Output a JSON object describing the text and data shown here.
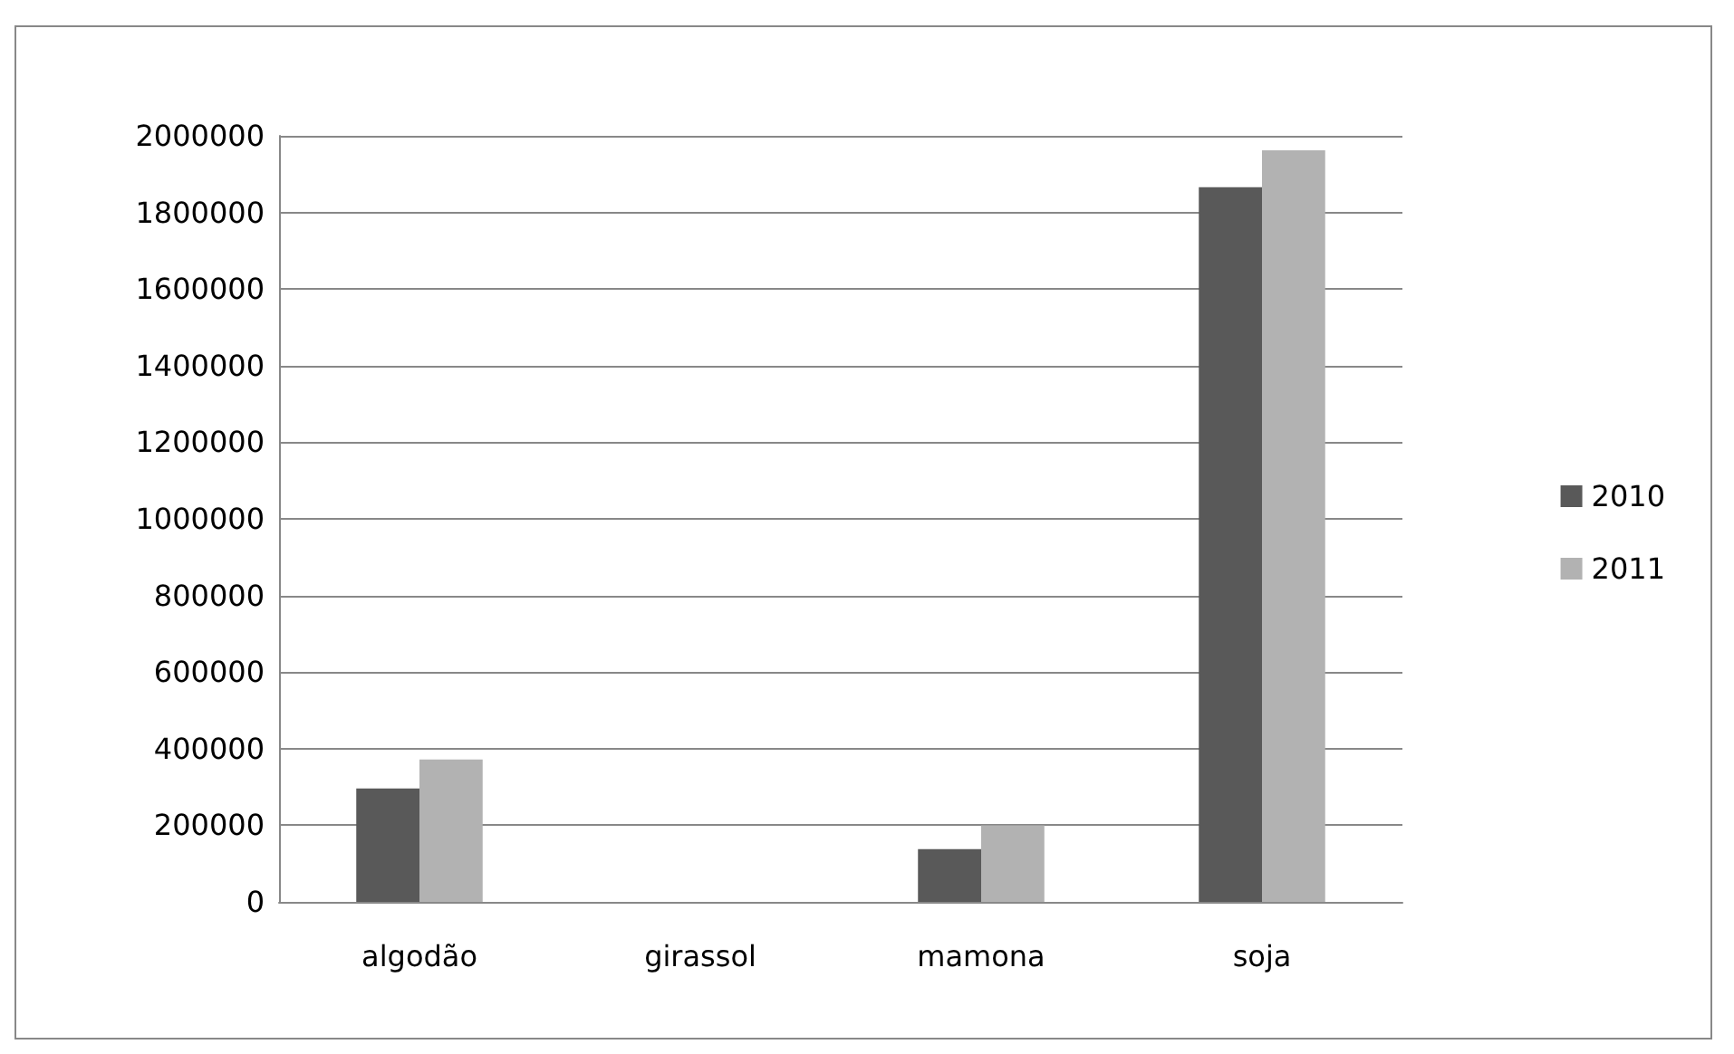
{
  "chart_data": {
    "type": "bar",
    "categories": [
      "algodão",
      "girassol",
      "mamona",
      "soja"
    ],
    "series": [
      {
        "name": "2010",
        "color": "#595959",
        "values": [
          296000,
          null,
          138000,
          1866000
        ]
      },
      {
        "name": "2011",
        "color": "#b2b2b2",
        "values": [
          372000,
          null,
          200000,
          1962000
        ]
      }
    ],
    "ylim": [
      0,
      2000000
    ],
    "yticks": [
      0,
      200000,
      400000,
      600000,
      800000,
      1000000,
      1200000,
      1400000,
      1600000,
      1800000,
      2000000
    ],
    "grid": true,
    "legend": "right"
  }
}
